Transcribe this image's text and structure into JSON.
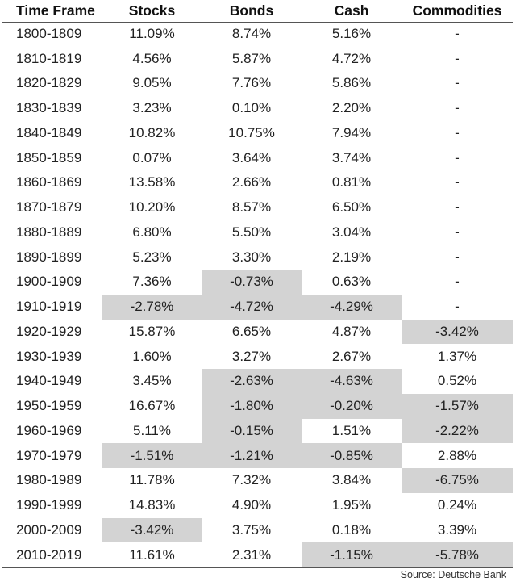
{
  "table": {
    "headers": [
      "Time Frame",
      "Stocks",
      "Bonds",
      "Cash",
      "Commodities"
    ],
    "rows": [
      [
        "1800-1809",
        "11.09%",
        "8.74%",
        "5.16%",
        "-"
      ],
      [
        "1810-1819",
        "4.56%",
        "5.87%",
        "4.72%",
        "-"
      ],
      [
        "1820-1829",
        "9.05%",
        "7.76%",
        "5.86%",
        "-"
      ],
      [
        "1830-1839",
        "3.23%",
        "0.10%",
        "2.20%",
        "-"
      ],
      [
        "1840-1849",
        "10.82%",
        "10.75%",
        "7.94%",
        "-"
      ],
      [
        "1850-1859",
        "0.07%",
        "3.64%",
        "3.74%",
        "-"
      ],
      [
        "1860-1869",
        "13.58%",
        "2.66%",
        "0.81%",
        "-"
      ],
      [
        "1870-1879",
        "10.20%",
        "8.57%",
        "6.50%",
        "-"
      ],
      [
        "1880-1889",
        "6.80%",
        "5.50%",
        "3.04%",
        "-"
      ],
      [
        "1890-1899",
        "5.23%",
        "3.30%",
        "2.19%",
        "-"
      ],
      [
        "1900-1909",
        "7.36%",
        "-0.73%",
        "0.63%",
        "-"
      ],
      [
        "1910-1919",
        "-2.78%",
        "-4.72%",
        "-4.29%",
        "-"
      ],
      [
        "1920-1929",
        "15.87%",
        "6.65%",
        "4.87%",
        "-3.42%"
      ],
      [
        "1930-1939",
        "1.60%",
        "3.27%",
        "2.67%",
        "1.37%"
      ],
      [
        "1940-1949",
        "3.45%",
        "-2.63%",
        "-4.63%",
        "0.52%"
      ],
      [
        "1950-1959",
        "16.67%",
        "-1.80%",
        "-0.20%",
        "-1.57%"
      ],
      [
        "1960-1969",
        "5.11%",
        "-0.15%",
        "1.51%",
        "-2.22%"
      ],
      [
        "1970-1979",
        "-1.51%",
        "-1.21%",
        "-0.85%",
        "2.88%"
      ],
      [
        "1980-1989",
        "11.78%",
        "7.32%",
        "3.84%",
        "-6.75%"
      ],
      [
        "1990-1999",
        "14.83%",
        "4.90%",
        "1.95%",
        "0.24%"
      ],
      [
        "2000-2009",
        "-3.42%",
        "3.75%",
        "0.18%",
        "3.39%"
      ],
      [
        "2010-2019",
        "11.61%",
        "2.31%",
        "-1.15%",
        "-5.78%"
      ]
    ],
    "negative_highlight_color": "#d3d3d3"
  },
  "source": "Source: Deutsche Bank"
}
